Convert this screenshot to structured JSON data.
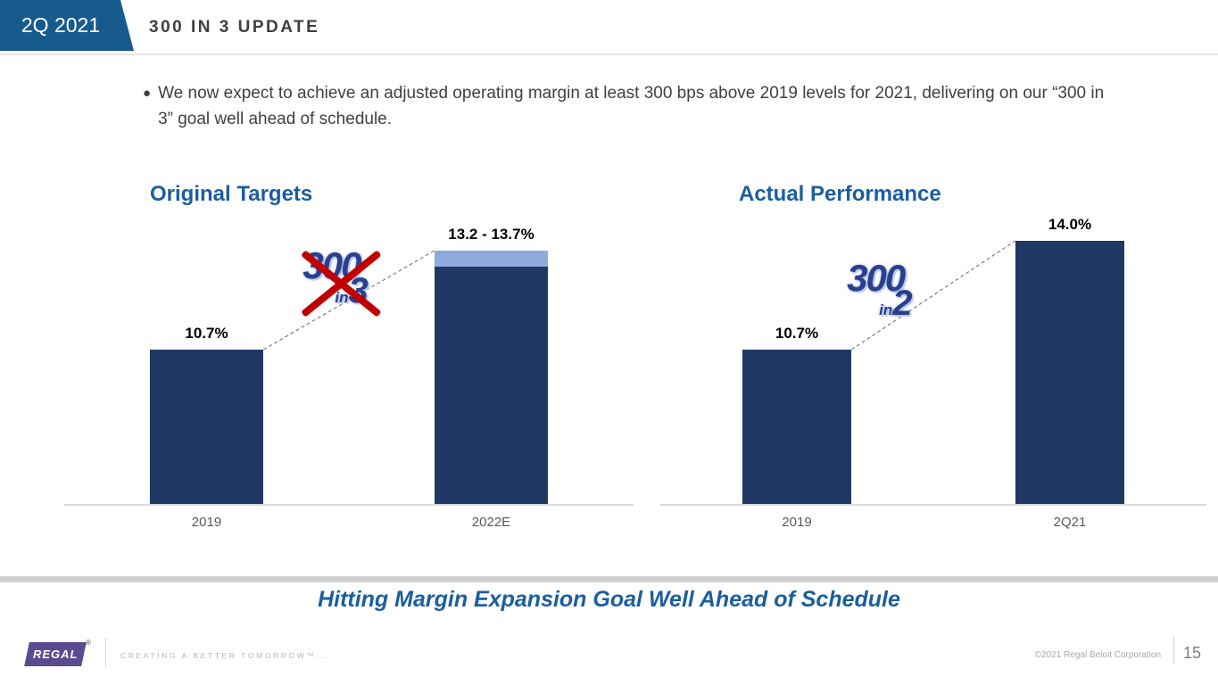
{
  "slide": {
    "flag": "2Q 2021",
    "title": "300 IN 3 UPDATE",
    "bullet": "We now expect to achieve an adjusted operating margin at least 300 bps above 2019 levels for 2021, delivering on our “300 in 3” goal well ahead of schedule.",
    "takeaway": "Hitting Margin Expansion Goal Well Ahead of Schedule"
  },
  "chart_data": [
    {
      "type": "bar",
      "title": "Original Targets",
      "categories": [
        "2019",
        "2022E"
      ],
      "bars": [
        {
          "category": "2019",
          "value": 10.7,
          "label": "10.7%"
        },
        {
          "category": "2022E",
          "value": 13.2,
          "value_high": 13.7,
          "label": "13.2 - 13.7%"
        }
      ],
      "ylim": [
        6,
        14.4
      ],
      "grid": false,
      "connector_line": true,
      "annotation": {
        "line1": "300",
        "small": "in",
        "big": "3",
        "crossed": true
      }
    },
    {
      "type": "bar",
      "title": "Actual Performance",
      "categories": [
        "2019",
        "2Q21"
      ],
      "bars": [
        {
          "category": "2019",
          "value": 10.7,
          "label": "10.7%"
        },
        {
          "category": "2Q21",
          "value": 14.0,
          "label": "14.0%"
        }
      ],
      "ylim": [
        6,
        14.4
      ],
      "grid": false,
      "connector_line": true,
      "annotation": {
        "line1": "300",
        "small": "in",
        "big": "2",
        "crossed": false
      }
    }
  ],
  "colors": {
    "bar_navy": "#1F3864",
    "bar_light_blue": "#8FAADC",
    "flag_blue": "#175B8E",
    "title_blue": "#1B5E9E",
    "badge_blue": "#2A3F8D",
    "cross_red": "#C00000",
    "logo_purple": "#5C4A91",
    "axis_gray": "#D9D9D9",
    "band_gray": "#D2D2D2",
    "dash_gray": "#7F7F7F"
  },
  "footer": {
    "logo_text": "REGAL",
    "logo_reg": "®",
    "tagline": "CREATING A BETTER TOMORROW™...",
    "copyright": "©2021 Regal Beloit Corporation",
    "page_number": "15"
  }
}
